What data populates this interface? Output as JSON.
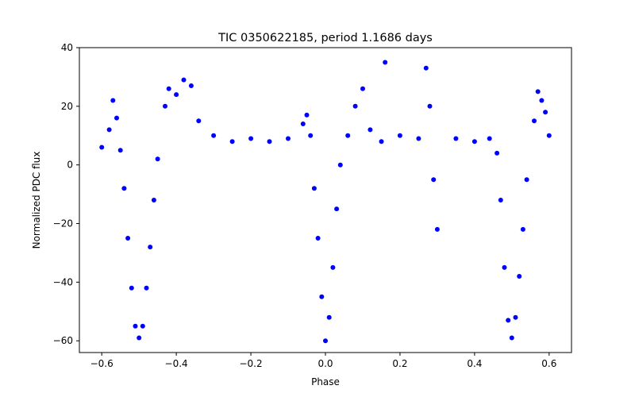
{
  "chart_data": {
    "type": "scatter",
    "title": "TIC 0350622185, period 1.1686 days",
    "xlabel": "Phase",
    "ylabel": "Normalized PDC flux",
    "xlim": [
      -0.66,
      0.66
    ],
    "ylim": [
      -64,
      40
    ],
    "xticks": [
      -0.6,
      -0.4,
      -0.2,
      0.0,
      0.2,
      0.4,
      0.6
    ],
    "xtick_labels": [
      "−0.6",
      "−0.4",
      "−0.2",
      "0.0",
      "0.2",
      "0.4",
      "0.6"
    ],
    "yticks": [
      -60,
      -40,
      -20,
      0,
      20,
      40
    ],
    "ytick_labels": [
      "−60",
      "−40",
      "−20",
      "0",
      "20",
      "40"
    ],
    "grid": false,
    "point_color": "#0000ff",
    "series": [
      {
        "points": [
          [
            -0.6,
            6
          ],
          [
            -0.58,
            12
          ],
          [
            -0.57,
            22
          ],
          [
            -0.56,
            16
          ],
          [
            -0.55,
            5
          ],
          [
            -0.54,
            -8
          ],
          [
            -0.53,
            -25
          ],
          [
            -0.52,
            -42
          ],
          [
            -0.51,
            -55
          ],
          [
            -0.5,
            -59
          ],
          [
            -0.49,
            -55
          ],
          [
            -0.48,
            -42
          ],
          [
            -0.47,
            -28
          ],
          [
            -0.46,
            -12
          ],
          [
            -0.45,
            2
          ],
          [
            -0.43,
            20
          ],
          [
            -0.42,
            26
          ],
          [
            -0.4,
            24
          ],
          [
            -0.38,
            29
          ],
          [
            -0.36,
            27
          ],
          [
            -0.34,
            15
          ],
          [
            -0.3,
            10
          ],
          [
            -0.25,
            8
          ],
          [
            -0.2,
            9
          ],
          [
            -0.15,
            8
          ],
          [
            -0.1,
            9
          ],
          [
            -0.06,
            14
          ],
          [
            -0.05,
            17
          ],
          [
            -0.04,
            10
          ],
          [
            -0.03,
            -8
          ],
          [
            -0.02,
            -25
          ],
          [
            -0.01,
            -45
          ],
          [
            0.0,
            -60
          ],
          [
            0.01,
            -52
          ],
          [
            0.02,
            -35
          ],
          [
            0.03,
            -15
          ],
          [
            0.04,
            0
          ],
          [
            0.06,
            10
          ],
          [
            0.08,
            20
          ],
          [
            0.1,
            26
          ],
          [
            0.12,
            12
          ],
          [
            0.15,
            8
          ],
          [
            0.16,
            35
          ],
          [
            0.2,
            10
          ],
          [
            0.25,
            9
          ],
          [
            0.27,
            33
          ],
          [
            0.28,
            20
          ],
          [
            0.29,
            -5
          ],
          [
            0.3,
            -22
          ],
          [
            0.35,
            9
          ],
          [
            0.4,
            8
          ],
          [
            0.44,
            9
          ],
          [
            0.46,
            4
          ],
          [
            0.47,
            -12
          ],
          [
            0.48,
            -35
          ],
          [
            0.49,
            -53
          ],
          [
            0.5,
            -59
          ],
          [
            0.51,
            -52
          ],
          [
            0.52,
            -38
          ],
          [
            0.53,
            -22
          ],
          [
            0.54,
            -5
          ],
          [
            0.56,
            15
          ],
          [
            0.57,
            25
          ],
          [
            0.58,
            22
          ],
          [
            0.59,
            18
          ],
          [
            0.6,
            10
          ]
        ]
      }
    ]
  }
}
